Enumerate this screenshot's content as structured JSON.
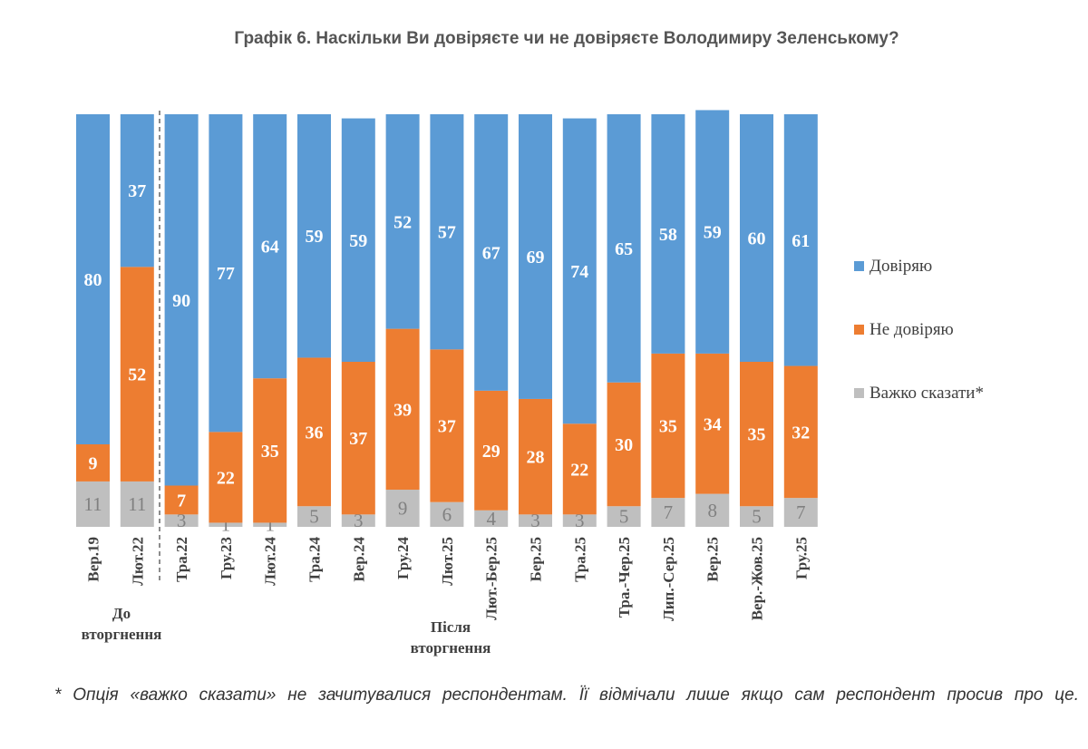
{
  "chart_data": {
    "type": "bar",
    "stacked": true,
    "title": "Графік 6. Наскільки Ви довіряєте чи не довіряєте Володимиру Зеленському?",
    "categories": [
      "Вер.19",
      "Лют.22",
      "Тра.22",
      "Гру.23",
      "Лют.24",
      "Тра.24",
      "Вер.24",
      "Гру.24",
      "Лют.25",
      "Лют.-Бер.25",
      "Бер.25",
      "Тра.25",
      "Тра.-Чер.25",
      "Лип.-Сер.25",
      "Вер.25",
      "Вер.-Жов.25",
      "Гру.25"
    ],
    "series": [
      {
        "name": "Довіряю",
        "color": "#5B9BD5",
        "values": [
          80,
          37,
          90,
          77,
          64,
          59,
          59,
          52,
          57,
          67,
          69,
          74,
          65,
          58,
          59,
          60,
          61
        ]
      },
      {
        "name": "Не довіряю",
        "color": "#ED7D31",
        "values": [
          9,
          52,
          7,
          22,
          35,
          36,
          37,
          39,
          37,
          29,
          28,
          22,
          30,
          35,
          34,
          35,
          32
        ]
      },
      {
        "name": "Важко сказати*",
        "color": "#BFBFBF",
        "values": [
          11,
          11,
          3,
          1,
          1,
          5,
          3,
          9,
          6,
          4,
          3,
          3,
          5,
          7,
          8,
          5,
          7
        ]
      }
    ],
    "ylim": [
      0,
      100
    ],
    "legend": "right",
    "grid": false,
    "annotations": [
      "До вторгнення",
      "Після вторгнення"
    ]
  },
  "footnote": "* Опція «важко сказати» не зачитувалися респондентам. Її відмічали лише якщо сам респондент просив про це."
}
